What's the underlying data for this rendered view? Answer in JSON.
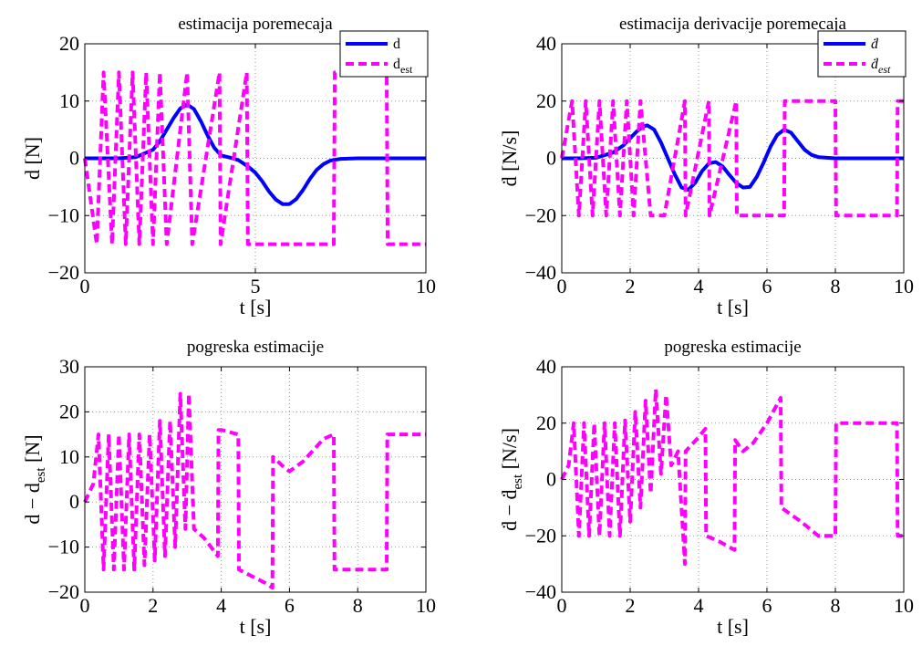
{
  "figure": {
    "background": "#ffffff",
    "axes_color": "#000000",
    "grid_color": "#9a9a9a"
  },
  "chart_data": [
    {
      "type": "line",
      "title": "estimacija poremecaja",
      "xlabel": "t [s]",
      "ylabel": "d [N]",
      "xlim": [
        0,
        10
      ],
      "ylim": [
        -20,
        20
      ],
      "xticks": [
        0,
        5,
        10
      ],
      "yticks": [
        -20,
        -10,
        0,
        10,
        20
      ],
      "xticklabels": [
        "0",
        "5",
        "10"
      ],
      "yticklabels": [
        "−20",
        "−10",
        "0",
        "10",
        "20"
      ],
      "grid": true,
      "legend": {
        "position": "top-right",
        "entries": [
          {
            "main": "d"
          },
          {
            "main": "d",
            "sub": "est"
          }
        ]
      },
      "series": [
        {
          "name": "d",
          "color": "#0000ff",
          "style": "solid",
          "width": 4,
          "x": [
            0,
            0.5,
            1.0,
            1.5,
            2.0,
            2.2,
            2.4,
            2.6,
            2.8,
            3.0,
            3.2,
            3.4,
            3.6,
            3.8,
            4.0,
            4.2,
            4.5,
            4.8,
            5.0,
            5.2,
            5.4,
            5.6,
            5.8,
            6.0,
            6.2,
            6.4,
            6.6,
            6.8,
            7.0,
            7.2,
            7.5,
            8.0,
            9.0,
            10.0
          ],
          "y": [
            0,
            0,
            0,
            0.2,
            1.5,
            3,
            5,
            7,
            8.7,
            9.4,
            8.6,
            6.5,
            4,
            1.8,
            0.5,
            0.2,
            -0.3,
            -1.5,
            -2.5,
            -4,
            -5.8,
            -7.2,
            -8,
            -8,
            -7.1,
            -5.5,
            -3.6,
            -2,
            -1,
            -0.4,
            -0.1,
            0,
            0,
            0
          ]
        },
        {
          "name": "d_est",
          "color": "#ff00ff",
          "style": "dashed",
          "width": 4,
          "switching": true,
          "high": 15,
          "low": -15,
          "x": [
            0,
            0.35,
            0.55,
            0.8,
            1.0,
            1.2,
            1.4,
            1.6,
            1.8,
            2.0,
            2.2,
            2.4,
            3.0,
            3.15,
            3.95,
            3.98,
            4.75,
            4.78,
            5.5,
            7.3,
            7.33,
            8.85,
            8.88,
            10.0
          ],
          "y": [
            0,
            -15,
            15,
            -15,
            15,
            -15,
            15,
            -15,
            15,
            -15,
            15,
            -15,
            15,
            -15,
            15,
            -15,
            15,
            -15,
            -15,
            -15,
            15,
            15,
            -15,
            -15
          ]
        }
      ]
    },
    {
      "type": "line",
      "title": "estimacija derivacije poremecaja",
      "xlabel": "t [s]",
      "ylabel": "ḋ [N/s]",
      "xlim": [
        0,
        10
      ],
      "ylim": [
        -40,
        40
      ],
      "xticks": [
        0,
        2,
        4,
        6,
        8,
        10
      ],
      "yticks": [
        -40,
        -20,
        0,
        20,
        40
      ],
      "xticklabels": [
        "0",
        "2",
        "4",
        "6",
        "8",
        "10"
      ],
      "yticklabels": [
        "−40",
        "−20",
        "0",
        "20",
        "40"
      ],
      "grid": true,
      "legend": {
        "position": "top-right",
        "entries": [
          {
            "main": "ḋ"
          },
          {
            "main": "ḋ",
            "sub": "est"
          }
        ]
      },
      "series": [
        {
          "name": "ḋ",
          "color": "#0000ff",
          "style": "solid",
          "width": 4,
          "x": [
            0,
            0.5,
            1.0,
            1.5,
            1.8,
            2.0,
            2.2,
            2.4,
            2.5,
            2.7,
            2.9,
            3.1,
            3.3,
            3.5,
            3.7,
            3.9,
            4.1,
            4.3,
            4.5,
            4.7,
            4.9,
            5.1,
            5.3,
            5.5,
            5.7,
            5.9,
            6.1,
            6.3,
            6.5,
            6.7,
            6.9,
            7.1,
            7.3,
            7.5,
            8.0,
            9.0,
            10.0
          ],
          "y": [
            0,
            0,
            0.2,
            2,
            4.5,
            7,
            9.5,
            11.2,
            11.5,
            10,
            5.5,
            0,
            -5.5,
            -10.2,
            -11,
            -8.5,
            -4.5,
            -1.8,
            -1.3,
            -2.8,
            -5.8,
            -8.6,
            -10.2,
            -10,
            -6.5,
            -1.5,
            4,
            8.2,
            10,
            9,
            6,
            3,
            1.2,
            0.4,
            0,
            0,
            0
          ]
        },
        {
          "name": "ḋ_est",
          "color": "#ff00ff",
          "style": "dashed",
          "width": 4,
          "switching": true,
          "high": 20,
          "low": -20,
          "x": [
            0,
            0.3,
            0.5,
            0.7,
            0.9,
            1.1,
            1.3,
            1.5,
            1.7,
            1.9,
            2.1,
            2.3,
            2.6,
            3.0,
            3.6,
            3.62,
            4.3,
            4.32,
            5.1,
            5.12,
            6.5,
            6.52,
            7.3,
            8.0,
            8.02,
            9.8,
            9.82,
            10.0
          ],
          "y": [
            0,
            20,
            -20,
            20,
            -20,
            20,
            -20,
            20,
            -20,
            20,
            -20,
            20,
            -20,
            -20,
            20,
            -20,
            20,
            -20,
            20,
            -20,
            -20,
            20,
            20,
            20,
            -20,
            -20,
            20,
            20
          ]
        }
      ]
    },
    {
      "type": "line",
      "title": "pogreska estimacije",
      "xlabel": "t [s]",
      "ylabel": "d − d",
      "ylabel_sub": "est",
      "ylabel_tail": " [N]",
      "xlim": [
        0,
        10
      ],
      "ylim": [
        -20,
        30
      ],
      "xticks": [
        0,
        2,
        4,
        6,
        8,
        10
      ],
      "yticks": [
        -20,
        -10,
        0,
        10,
        20,
        30
      ],
      "xticklabels": [
        "0",
        "2",
        "4",
        "6",
        "8",
        "10"
      ],
      "yticklabels": [
        "−20",
        "−10",
        "0",
        "10",
        "20",
        "30"
      ],
      "grid": true,
      "series": [
        {
          "name": "d − d_est",
          "color": "#ff00ff",
          "style": "dashed",
          "width": 4,
          "x": [
            0,
            0.25,
            0.4,
            0.55,
            0.7,
            0.85,
            1.0,
            1.15,
            1.3,
            1.45,
            1.6,
            1.75,
            1.9,
            2.05,
            2.2,
            2.35,
            2.5,
            2.65,
            2.8,
            2.95,
            3.05,
            3.2,
            3.5,
            3.9,
            3.92,
            4.0,
            4.5,
            4.52,
            5.3,
            5.5,
            5.52,
            5.8,
            6.0,
            6.4,
            7.0,
            7.3,
            7.32,
            8.85,
            8.87,
            10.0
          ],
          "y": [
            0,
            4,
            15,
            -15,
            15,
            -15,
            15,
            -15,
            15,
            -15,
            15,
            -14,
            15,
            -13,
            18,
            -12,
            18,
            -10,
            24,
            -6,
            24,
            -6,
            -8,
            -12,
            16,
            16,
            15,
            -15,
            -18,
            -19,
            10,
            8,
            6.8,
            9,
            14,
            15,
            -15,
            -15,
            15,
            15
          ]
        }
      ]
    },
    {
      "type": "line",
      "title": "pogreska estimacije",
      "xlabel": "t [s]",
      "ylabel": "ḋ − ḋ",
      "ylabel_sub": "est",
      "ylabel_tail": "  [N/s]",
      "xlim": [
        0,
        10
      ],
      "ylim": [
        -40,
        40
      ],
      "xticks": [
        0,
        2,
        4,
        6,
        8,
        10
      ],
      "yticks": [
        -40,
        -20,
        0,
        20,
        40
      ],
      "xticklabels": [
        "0",
        "2",
        "4",
        "6",
        "8",
        "10"
      ],
      "yticklabels": [
        "−40",
        "−20",
        "0",
        "20",
        "40"
      ],
      "grid": true,
      "series": [
        {
          "name": "ḋ − ḋ_est",
          "color": "#ff00ff",
          "style": "dashed",
          "width": 4,
          "x": [
            0,
            0.2,
            0.35,
            0.5,
            0.65,
            0.8,
            0.95,
            1.1,
            1.25,
            1.4,
            1.55,
            1.7,
            1.85,
            2.0,
            2.15,
            2.3,
            2.45,
            2.6,
            2.75,
            2.9,
            3.05,
            3.2,
            3.4,
            3.6,
            3.62,
            4.0,
            4.2,
            4.22,
            4.6,
            5.05,
            5.07,
            5.3,
            5.6,
            6.0,
            6.4,
            6.42,
            7.0,
            7.5,
            8.0,
            8.02,
            9.8,
            9.82,
            10.0
          ],
          "y": [
            0,
            5,
            20,
            -20,
            20,
            -20,
            20,
            -20,
            20,
            -20,
            20,
            -20,
            21,
            -15,
            24,
            -10,
            28,
            -5,
            32,
            2,
            30,
            5,
            10,
            -30,
            10,
            15,
            18,
            -20,
            -22,
            -25,
            14,
            10,
            13,
            20,
            29,
            -10,
            -15,
            -20,
            -20,
            20,
            20,
            -20,
            -20
          ]
        }
      ]
    }
  ]
}
